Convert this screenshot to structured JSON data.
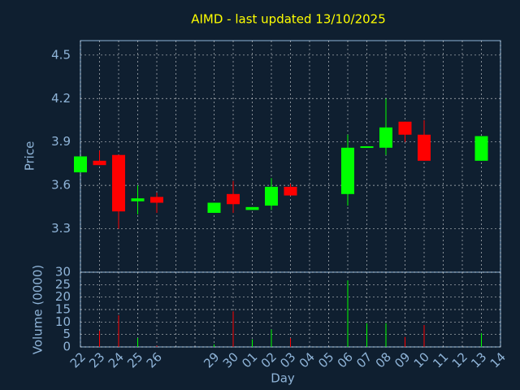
{
  "chart_data": {
    "type": "candlestick",
    "title": "AIMD - last updated 13/10/2025",
    "xlabel": "Day",
    "ylabel": "Price",
    "y2label": "Volume (0000)",
    "categories": [
      "22",
      "23",
      "24",
      "25",
      "26",
      null,
      null,
      "29",
      "30",
      "01",
      "02",
      "03",
      "04",
      "05",
      "06",
      "07",
      "08",
      "09",
      "10",
      "11",
      "12",
      "13",
      "14"
    ],
    "open": [
      3.69,
      3.77,
      3.81,
      3.49,
      3.52,
      null,
      null,
      3.41,
      3.54,
      3.43,
      3.46,
      3.59,
      null,
      null,
      3.54,
      3.86,
      3.86,
      4.04,
      3.95,
      null,
      null,
      3.77,
      null
    ],
    "high": [
      3.8,
      3.84,
      3.81,
      3.6,
      3.55,
      null,
      null,
      3.48,
      3.63,
      3.45,
      3.65,
      3.61,
      null,
      null,
      3.95,
      3.87,
      4.2,
      4.04,
      4.05,
      null,
      null,
      3.94,
      null
    ],
    "low": [
      3.69,
      3.74,
      3.3,
      3.4,
      3.41,
      null,
      null,
      3.41,
      3.41,
      3.43,
      3.43,
      3.53,
      null,
      null,
      3.46,
      3.86,
      3.81,
      3.9,
      3.77,
      null,
      null,
      3.77,
      null
    ],
    "close": [
      3.8,
      3.74,
      3.42,
      3.51,
      3.48,
      null,
      null,
      3.48,
      3.47,
      3.45,
      3.59,
      3.53,
      null,
      null,
      3.86,
      3.87,
      4.0,
      3.95,
      3.77,
      null,
      null,
      3.94,
      null
    ],
    "volume": [
      0,
      6.5,
      12.7,
      3.6,
      0.5,
      null,
      null,
      1,
      14.3,
      3,
      7,
      3.5,
      null,
      null,
      26.7,
      9.5,
      9.5,
      4,
      8.8,
      null,
      null,
      5.5,
      null
    ],
    "up_color": "#00ff00",
    "down_color": "#ff0000",
    "ylim": [
      3.0,
      4.6
    ],
    "yticks": [
      3.3,
      3.6,
      3.9,
      4.2,
      4.5
    ],
    "y2lim": [
      0,
      30
    ],
    "y2ticks": [
      0,
      5,
      10,
      15,
      20,
      25,
      30
    ],
    "grid": true
  }
}
